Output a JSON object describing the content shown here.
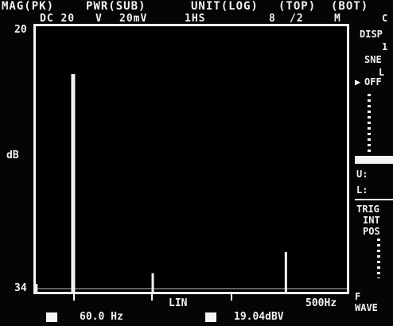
{
  "header": {
    "line1": [
      "MAG(PK)",
      "PWR(SUB)",
      "UNIT(LOG)",
      "(TOP)",
      "(BOT)"
    ],
    "line2": [
      "DC 20",
      "V",
      "20mV",
      "1HS",
      "8",
      "/2",
      "M"
    ]
  },
  "plot": {
    "y_top_label": "20",
    "y_mid_label": "dB",
    "y_bottom_label": "34",
    "x_mode_label": "LIN",
    "x_end_label": "500Hz",
    "peaks": [
      {
        "freq": 60,
        "level": 0.82
      },
      {
        "freq": 188,
        "level": 0.07
      },
      {
        "freq": 402,
        "level": 0.15
      },
      {
        "freq": 1,
        "level": 0.03
      }
    ],
    "x_range": [
      0,
      500
    ]
  },
  "footer": {
    "freq_value": "60.0 Hz",
    "level_value": "19.04dBV"
  },
  "right_panel": {
    "top_char": "C",
    "label_dis": "DISP",
    "item1": "1",
    "label_sne": "SNE",
    "item_l": "L",
    "label_off": "OFF",
    "label_u": "U:",
    "label_l": "L:",
    "label_trig": "TRIG",
    "trig_sub": "INT",
    "trig_pos": "POS",
    "label_f": "F",
    "label_wave": "WAVE"
  }
}
